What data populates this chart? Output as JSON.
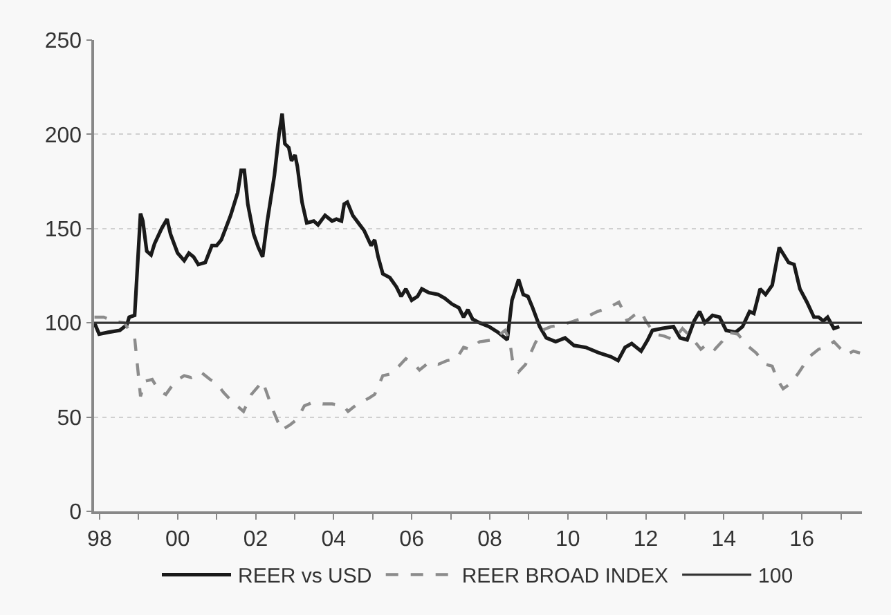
{
  "chart_data": {
    "type": "line",
    "series": [
      {
        "name": "REER vs USD",
        "color": "#1a1a1a",
        "line_style": "solid",
        "x": [
          1997.87,
          1997.99,
          1998.22,
          1998.52,
          1998.7,
          1998.76,
          1998.9,
          1999.05,
          1999.11,
          1999.21,
          1999.32,
          1999.41,
          1999.59,
          1999.73,
          1999.82,
          2000.0,
          2000.17,
          2000.29,
          2000.41,
          2000.53,
          2000.71,
          2000.88,
          2001.0,
          2001.12,
          2001.36,
          2001.54,
          2001.63,
          2001.71,
          2001.8,
          2001.95,
          2002.07,
          2002.18,
          2002.3,
          2002.48,
          2002.6,
          2002.68,
          2002.75,
          2002.85,
          2002.92,
          2003.01,
          2003.07,
          2003.19,
          2003.31,
          2003.49,
          2003.6,
          2003.78,
          2003.96,
          2004.07,
          2004.2,
          2004.27,
          2004.35,
          2004.49,
          2004.67,
          2004.78,
          2004.96,
          2005.05,
          2005.14,
          2005.26,
          2005.44,
          2005.61,
          2005.73,
          2005.85,
          2006.0,
          2006.15,
          2006.26,
          2006.44,
          2006.68,
          2006.85,
          2007.03,
          2007.21,
          2007.33,
          2007.44,
          2007.56,
          2007.74,
          2007.98,
          2008.21,
          2008.45,
          2008.57,
          2008.74,
          2008.86,
          2008.98,
          2009.1,
          2009.28,
          2009.45,
          2009.69,
          2009.93,
          2010.16,
          2010.46,
          2010.81,
          2011.11,
          2011.29,
          2011.47,
          2011.64,
          2011.76,
          2011.88,
          2012.05,
          2012.17,
          2012.41,
          2012.71,
          2012.88,
          2013.06,
          2013.24,
          2013.38,
          2013.51,
          2013.71,
          2013.89,
          2014.06,
          2014.3,
          2014.48,
          2014.66,
          2014.77,
          2014.93,
          2015.07,
          2015.24,
          2015.42,
          2015.54,
          2015.66,
          2015.8,
          2015.95,
          2016.13,
          2016.31,
          2016.43,
          2016.55,
          2016.66,
          2016.82,
          2016.96
        ],
        "values": [
          100,
          94,
          95,
          96,
          99,
          103,
          104,
          158,
          154,
          138,
          136,
          142,
          150,
          155,
          147,
          137,
          133,
          137,
          135,
          131,
          132,
          141,
          141,
          144,
          157,
          169,
          181,
          181,
          163,
          147,
          140,
          135,
          154,
          178,
          200,
          211,
          195,
          193,
          186,
          189,
          183,
          164,
          153,
          154,
          152,
          157,
          154,
          155,
          154,
          163,
          164,
          157,
          152,
          149,
          141,
          144,
          135,
          126,
          124,
          119,
          114,
          118,
          112,
          114,
          118,
          116,
          115,
          113,
          110,
          108,
          103,
          107,
          102,
          100,
          98,
          95,
          91,
          112,
          123,
          115,
          114,
          108,
          98,
          92,
          90,
          92,
          88,
          87,
          84,
          82,
          80,
          87,
          89,
          87,
          85,
          91,
          96,
          97,
          98,
          92,
          91,
          101,
          106,
          100,
          104,
          103,
          96,
          95,
          98,
          106,
          105,
          118,
          115,
          120,
          140,
          136,
          132,
          131,
          118,
          111,
          103,
          103,
          101,
          103,
          97,
          98
        ]
      },
      {
        "name": "REER BROAD INDEX",
        "color": "#8c8c8c",
        "line_style": "dashed",
        "x": [
          1997.87,
          1998.11,
          1998.34,
          1998.64,
          1998.76,
          1998.9,
          1999.05,
          1999.17,
          1999.35,
          1999.52,
          1999.7,
          1999.94,
          2000.17,
          2000.35,
          2000.59,
          2000.83,
          2001.0,
          2001.18,
          2001.41,
          2001.69,
          2001.89,
          2002.18,
          2002.42,
          2002.66,
          2002.89,
          2003.07,
          2003.25,
          2003.49,
          2003.72,
          2003.96,
          2004.25,
          2004.37,
          2004.61,
          2004.9,
          2005.05,
          2005.26,
          2005.49,
          2005.67,
          2005.85,
          2006.02,
          2006.2,
          2006.44,
          2006.68,
          2006.91,
          2007.15,
          2007.33,
          2007.5,
          2007.74,
          2008.1,
          2008.39,
          2008.51,
          2008.59,
          2008.74,
          2008.92,
          2009.16,
          2009.34,
          2009.57,
          2009.87,
          2010.16,
          2010.46,
          2010.76,
          2011.05,
          2011.31,
          2011.43,
          2011.52,
          2011.7,
          2011.88,
          2012.0,
          2012.23,
          2012.47,
          2012.71,
          2012.94,
          2013.18,
          2013.41,
          2013.59,
          2013.77,
          2013.95,
          2014.12,
          2014.36,
          2014.6,
          2014.83,
          2015.07,
          2015.24,
          2015.37,
          2015.52,
          2015.72,
          2015.9,
          2016.19,
          2016.43,
          2016.61,
          2016.82,
          2016.96,
          2017.14,
          2017.32,
          2017.49
        ],
        "values": [
          103,
          103,
          101,
          100,
          96,
          92,
          61,
          69,
          70,
          64,
          62,
          69,
          72,
          71,
          74,
          70,
          68,
          63,
          58,
          53,
          62,
          69,
          55,
          43,
          46,
          49,
          56,
          58,
          57,
          57,
          56,
          53,
          57,
          60,
          62,
          72,
          73,
          77,
          81,
          79,
          75,
          79,
          78,
          80,
          81,
          87,
          86,
          90,
          91,
          96,
          91,
          79,
          74,
          78,
          89,
          96,
          98,
          99,
          101,
          103,
          106,
          108,
          111,
          106,
          101,
          104,
          106,
          101,
          94,
          93,
          91,
          97,
          92,
          86,
          89,
          86,
          90,
          95,
          94,
          88,
          84,
          78,
          77,
          70,
          65,
          68,
          73,
          82,
          86,
          87,
          90,
          87,
          83,
          85,
          84
        ]
      },
      {
        "name": "100",
        "color": "#333333",
        "line_style": "solid",
        "x": [
          1997.86,
          2017.54
        ],
        "values": [
          100,
          100
        ]
      }
    ],
    "xlim": [
      1997.86,
      2017.54
    ],
    "xticks": [
      {
        "value": 1998,
        "label": "98"
      },
      {
        "value": 1999,
        "label": null
      },
      {
        "value": 2000,
        "label": "00"
      },
      {
        "value": 2001,
        "label": null
      },
      {
        "value": 2002,
        "label": "02"
      },
      {
        "value": 2003,
        "label": null
      },
      {
        "value": 2004,
        "label": "04"
      },
      {
        "value": 2005,
        "label": null
      },
      {
        "value": 2006,
        "label": "06"
      },
      {
        "value": 2007,
        "label": null
      },
      {
        "value": 2008,
        "label": "08"
      },
      {
        "value": 2009,
        "label": null
      },
      {
        "value": 2010,
        "label": "10"
      },
      {
        "value": 2011,
        "label": null
      },
      {
        "value": 2012,
        "label": "12"
      },
      {
        "value": 2013,
        "label": null
      },
      {
        "value": 2014,
        "label": "14"
      },
      {
        "value": 2015,
        "label": null
      },
      {
        "value": 2016,
        "label": "16"
      },
      {
        "value": 2017,
        "label": null
      }
    ],
    "ylim": [
      0,
      250
    ],
    "yticks": [
      0,
      50,
      100,
      150,
      200,
      250
    ],
    "grid": "y",
    "legend": "bottom",
    "marker": "none"
  }
}
